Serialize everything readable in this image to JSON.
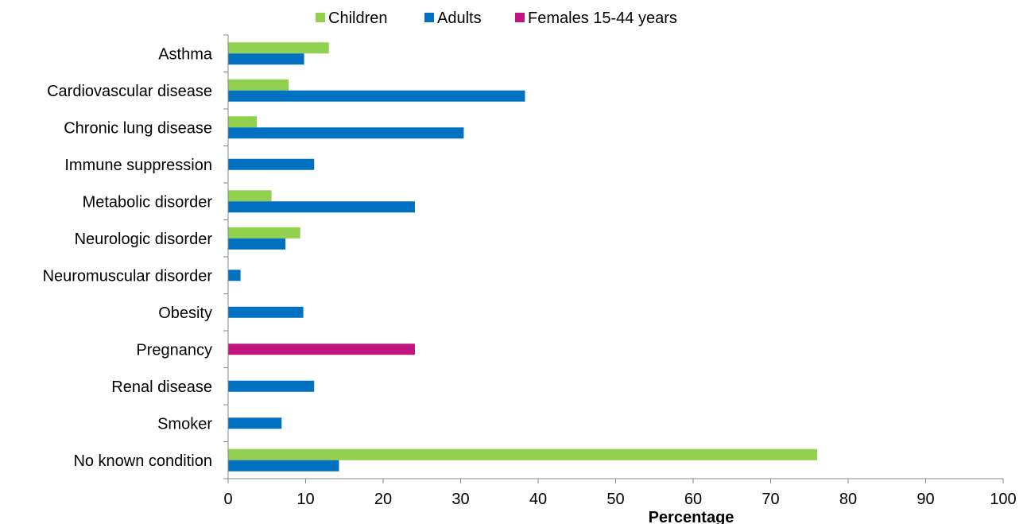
{
  "chart_data": {
    "type": "bar",
    "orientation": "horizontal",
    "xlabel": "Percentage",
    "ylabel": "",
    "xlim": [
      0,
      100
    ],
    "xticks": [
      0,
      10,
      20,
      30,
      40,
      50,
      60,
      70,
      80,
      90,
      100
    ],
    "legend_position": "top",
    "grid": false,
    "categories": [
      "Asthma",
      "Cardiovascular disease",
      "Chronic lung disease",
      "Immune suppression",
      "Metabolic disorder",
      "Neurologic disorder",
      "Neuromuscular disorder",
      "Obesity",
      "Pregnancy",
      "Renal disease",
      "Smoker",
      "No known condition"
    ],
    "series": [
      {
        "name": "Children",
        "color": "#92d050",
        "values": [
          13.0,
          7.8,
          3.7,
          null,
          5.6,
          9.3,
          null,
          null,
          null,
          null,
          null,
          76.0
        ]
      },
      {
        "name": "Adults",
        "color": "#0070c0",
        "values": [
          9.8,
          38.3,
          30.4,
          11.1,
          24.1,
          7.4,
          1.6,
          9.7,
          null,
          11.1,
          6.9,
          14.3
        ]
      },
      {
        "name": "Females 15-44 years",
        "color": "#c0157f",
        "values": [
          null,
          null,
          null,
          null,
          null,
          null,
          null,
          null,
          24.1,
          null,
          null,
          null
        ]
      }
    ]
  }
}
